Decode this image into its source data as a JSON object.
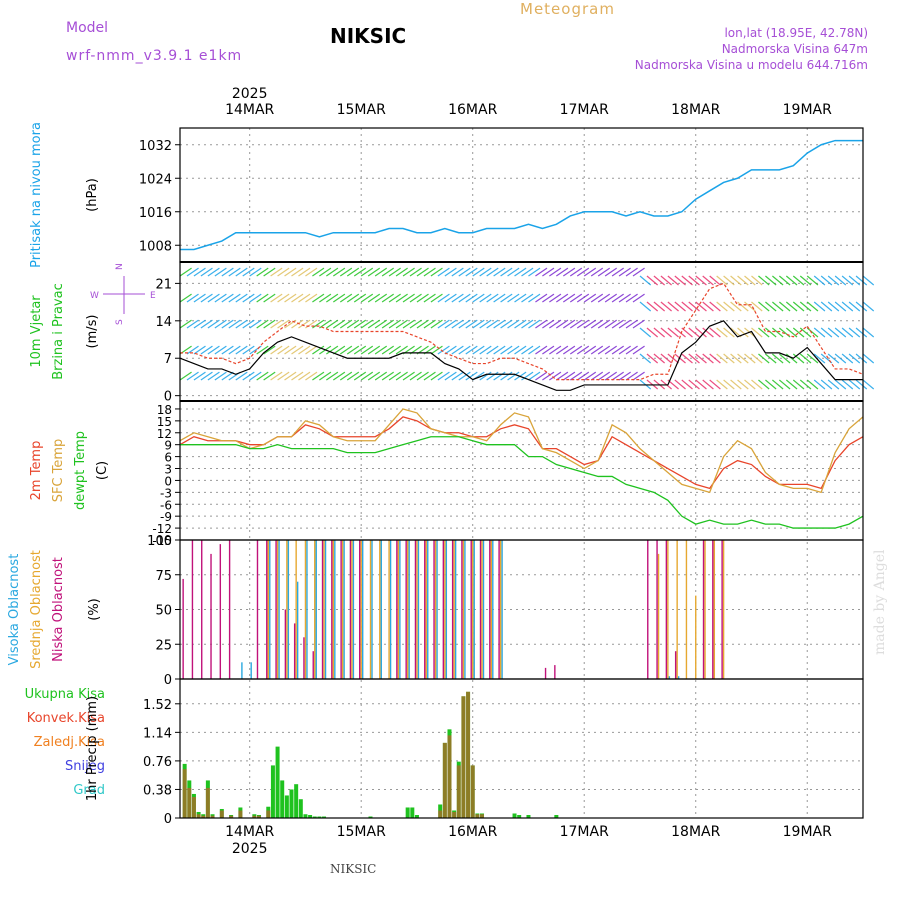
{
  "header": {
    "model_label": "Model",
    "model_name": "wrf-nmm_v3.9.1 e1km",
    "station": "NIKSIC",
    "product": "Meteogram",
    "lonlat": "lon,lat (18.95E, 42.78N)",
    "altitude": "Nadmorska Visina 647m",
    "model_altitude": "Nadmorska Visina u modelu 644.716m"
  },
  "footer": {
    "station": "NIKSIC",
    "credit": "made by Angel"
  },
  "colors": {
    "pressure": "#1aa3e8",
    "wind_speed": "#000000",
    "wind_gust": "#e8452b",
    "temp_2m": "#e8452b",
    "temp_sfc": "#d9a43a",
    "dewpoint": "#1fc21f",
    "cloud_high": "#2aa8e0",
    "cloud_mid": "#e6a830",
    "cloud_low": "#c0127a",
    "precip_total": "#1fc21f",
    "precip_conv": "#e8452b",
    "precip_frz": "#f08020",
    "precip_snow": "#4040e0",
    "precip_hail": "#30c8c8",
    "grid": "#999999"
  },
  "time_axis": {
    "year": "2025",
    "days": [
      "14MAR",
      "15MAR",
      "16MAR",
      "17MAR",
      "18MAR",
      "19MAR"
    ],
    "start_hour": -15,
    "end_hour": 132
  },
  "chart_data": [
    {
      "type": "line",
      "panel": "pressure",
      "ylabel_lines": [
        "Pritisak na nivou mora"
      ],
      "unit": "(hPa)",
      "ylim": [
        1004,
        1036
      ],
      "yticks": [
        1008,
        1016,
        1024,
        1032
      ],
      "grid": true,
      "x_hours": [
        -15,
        -12,
        -9,
        -6,
        -3,
        0,
        3,
        6,
        9,
        12,
        15,
        18,
        21,
        24,
        27,
        30,
        33,
        36,
        39,
        42,
        45,
        48,
        51,
        54,
        57,
        60,
        63,
        66,
        69,
        72,
        75,
        78,
        81,
        84,
        87,
        90,
        93,
        96,
        99,
        102,
        105,
        108,
        111,
        114,
        117,
        120,
        123,
        126,
        129,
        132
      ],
      "series": [
        {
          "values": [
            1007,
            1007,
            1008,
            1009,
            1011,
            1011,
            1011,
            1011,
            1011,
            1011,
            1010,
            1011,
            1011,
            1011,
            1011,
            1012,
            1012,
            1011,
            1011,
            1012,
            1011,
            1011,
            1012,
            1012,
            1012,
            1013,
            1012,
            1013,
            1015,
            1016,
            1016,
            1016,
            1015,
            1016,
            1015,
            1015,
            1016,
            1019,
            1021,
            1023,
            1024,
            1026,
            1026,
            1026,
            1027,
            1030,
            1032,
            1033,
            1033,
            1033
          ]
        }
      ]
    },
    {
      "type": "line",
      "panel": "wind",
      "ylabel_lines": [
        "10m Vjetar",
        "Brzina i Pravac"
      ],
      "unit": "(m/s)",
      "ylim": [
        -1,
        25
      ],
      "yticks": [
        0,
        7,
        14,
        21
      ],
      "grid": true,
      "compass": {
        "n": "N",
        "s": "S",
        "e": "E",
        "w": "W"
      },
      "x_hours": [
        -15,
        -12,
        -9,
        -6,
        -3,
        0,
        3,
        6,
        9,
        12,
        15,
        18,
        21,
        24,
        27,
        30,
        33,
        36,
        39,
        42,
        45,
        48,
        51,
        54,
        57,
        60,
        63,
        66,
        69,
        72,
        75,
        78,
        81,
        84,
        87,
        90,
        93,
        96,
        99,
        102,
        105,
        108,
        111,
        114,
        117,
        120,
        123,
        126,
        129,
        132
      ],
      "series": [
        {
          "values": [
            7,
            6,
            5,
            5,
            4,
            5,
            8,
            10,
            11,
            10,
            9,
            8,
            7,
            7,
            7,
            7,
            8,
            8,
            8,
            6,
            5,
            3,
            4,
            4,
            4,
            3,
            2,
            1,
            1,
            2,
            2,
            2,
            2,
            2,
            2,
            2,
            8,
            10,
            13,
            14,
            11,
            12,
            8,
            8,
            7,
            9,
            6,
            3,
            3,
            3
          ]
        },
        {
          "values": [
            8,
            8,
            7,
            7,
            6,
            7,
            10,
            12,
            14,
            13,
            13,
            12,
            12,
            12,
            12,
            12,
            12,
            11,
            10,
            8,
            7,
            6,
            6,
            7,
            7,
            6,
            5,
            3,
            3,
            3,
            3,
            3,
            3,
            3,
            4,
            4,
            12,
            16,
            20,
            21,
            17,
            17,
            12,
            12,
            11,
            13,
            9,
            5,
            5,
            4
          ]
        }
      ]
    },
    {
      "type": "line",
      "panel": "temperature",
      "ylabel_lines": [
        "2m Temp",
        "SFC Temp",
        "dewpt Temp"
      ],
      "unit": "(C)",
      "ylim": [
        -15,
        20
      ],
      "yticks": [
        -15,
        -12,
        -9,
        -6,
        -3,
        0,
        3,
        6,
        9,
        12,
        15,
        18
      ],
      "grid": true,
      "x_hours": [
        -15,
        -12,
        -9,
        -6,
        -3,
        0,
        3,
        6,
        9,
        12,
        15,
        18,
        21,
        24,
        27,
        30,
        33,
        36,
        39,
        42,
        45,
        48,
        51,
        54,
        57,
        60,
        63,
        66,
        69,
        72,
        75,
        78,
        81,
        84,
        87,
        90,
        93,
        96,
        99,
        102,
        105,
        108,
        111,
        114,
        117,
        120,
        123,
        126,
        129,
        132
      ],
      "series": [
        {
          "values": [
            9,
            11,
            10,
            10,
            10,
            9,
            9,
            11,
            11,
            14,
            13,
            11,
            11,
            11,
            11,
            13,
            16,
            15,
            13,
            12,
            12,
            11,
            11,
            13,
            14,
            13,
            8,
            8,
            6,
            4,
            5,
            11,
            9,
            7,
            5,
            3,
            1,
            -1,
            -2,
            3,
            5,
            4,
            1,
            -1,
            -1,
            -1,
            -2,
            5,
            9,
            11
          ]
        },
        {
          "values": [
            10,
            12,
            11,
            10,
            10,
            8,
            9,
            11,
            11,
            15,
            14,
            11,
            10,
            10,
            10,
            14,
            18,
            17,
            13,
            12,
            11,
            11,
            10,
            14,
            17,
            16,
            8,
            7,
            5,
            3,
            5,
            14,
            12,
            8,
            5,
            2,
            -1,
            -2,
            -3,
            6,
            10,
            8,
            2,
            -1,
            -2,
            -2,
            -3,
            7,
            13,
            16
          ]
        },
        {
          "values": [
            9,
            9,
            9,
            9,
            9,
            8,
            8,
            9,
            8,
            8,
            8,
            8,
            7,
            7,
            7,
            8,
            9,
            10,
            11,
            11,
            11,
            10,
            9,
            9,
            9,
            6,
            6,
            4,
            3,
            2,
            1,
            1,
            -1,
            -2,
            -3,
            -5,
            -9,
            -11,
            -10,
            -11,
            -11,
            -10,
            -11,
            -11,
            -12,
            -12,
            -12,
            -12,
            -11,
            -9
          ]
        }
      ]
    },
    {
      "type": "bar",
      "panel": "clouds",
      "ylabel_lines": [
        "Visoka Oblacnost",
        "Srednja Oblacnost",
        "Niska Oblacnost"
      ],
      "unit": "(%)",
      "ylim": [
        0,
        100
      ],
      "yticks": [
        0,
        25,
        50,
        75,
        100
      ],
      "grid": true,
      "x_hours": [
        -14,
        -12,
        -10,
        -8,
        -6,
        -4,
        -2,
        0,
        2,
        4,
        6,
        8,
        10,
        12,
        14,
        16,
        18,
        20,
        22,
        24,
        26,
        28,
        30,
        32,
        34,
        36,
        38,
        40,
        42,
        44,
        46,
        48,
        50,
        52,
        54,
        56,
        58,
        60,
        62,
        64,
        66,
        68,
        70,
        72,
        74,
        76,
        78,
        80,
        82,
        84,
        86,
        88,
        90,
        92,
        94,
        96,
        98,
        100,
        102,
        104,
        106,
        108,
        110,
        112,
        114,
        116,
        118,
        120,
        122,
        124,
        126,
        128,
        130,
        132
      ],
      "series": [
        {
          "values": [
            0,
            0,
            0,
            0,
            0,
            0,
            12,
            12,
            0,
            100,
            100,
            100,
            70,
            100,
            100,
            100,
            100,
            100,
            100,
            100,
            100,
            100,
            100,
            100,
            100,
            100,
            100,
            100,
            100,
            100,
            100,
            100,
            100,
            100,
            100,
            0,
            0,
            0,
            0,
            0,
            0,
            0,
            0,
            0,
            0,
            0,
            0,
            0,
            0,
            0,
            0,
            0,
            2,
            2,
            0,
            0,
            0,
            0,
            0,
            0,
            0,
            0,
            0,
            0,
            0,
            0,
            0,
            0,
            0,
            0,
            0,
            0,
            0,
            0
          ]
        },
        {
          "values": [
            0,
            0,
            0,
            0,
            0,
            0,
            0,
            0,
            0,
            100,
            100,
            100,
            100,
            100,
            100,
            100,
            100,
            100,
            100,
            100,
            100,
            100,
            100,
            100,
            100,
            100,
            100,
            100,
            100,
            100,
            100,
            100,
            100,
            100,
            100,
            0,
            0,
            0,
            0,
            0,
            0,
            0,
            0,
            0,
            0,
            0,
            0,
            0,
            0,
            0,
            0,
            90,
            100,
            100,
            100,
            60,
            100,
            100,
            100,
            0,
            0,
            0,
            0,
            0,
            0,
            0,
            0,
            0,
            0,
            0,
            0,
            0,
            0,
            0
          ]
        },
        {
          "values": [
            72,
            100,
            100,
            90,
            97,
            100,
            0,
            0,
            100,
            100,
            100,
            50,
            40,
            30,
            20,
            100,
            100,
            100,
            100,
            100,
            0,
            0,
            0,
            100,
            100,
            100,
            100,
            100,
            100,
            100,
            100,
            100,
            100,
            100,
            100,
            0,
            0,
            0,
            0,
            8,
            10,
            0,
            0,
            0,
            0,
            0,
            0,
            0,
            0,
            0,
            100,
            100,
            100,
            20,
            0,
            0,
            100,
            100,
            100,
            0,
            0,
            0,
            0,
            0,
            0,
            0,
            0,
            0,
            0,
            0,
            0,
            0,
            0,
            0
          ]
        }
      ]
    },
    {
      "type": "bar",
      "panel": "precip",
      "ylabel_lines": [
        "1hr Precip (mm)"
      ],
      "legend": [
        "Ukupna Kisa",
        "Konvek.Kisa",
        "Zaledj.Kisa",
        "Snijeg",
        "Grad"
      ],
      "ylim": [
        0,
        1.85
      ],
      "yticks": [
        0,
        0.38,
        0.76,
        1.14,
        1.52
      ],
      "grid": true,
      "x_hours": [
        -14,
        -13,
        -12,
        -11,
        -10,
        -9,
        -8,
        -6,
        -4,
        -2,
        1,
        2,
        4,
        5,
        6,
        7,
        8,
        9,
        10,
        11,
        12,
        13,
        14,
        15,
        16,
        26,
        34,
        35,
        36,
        41,
        42,
        43,
        44,
        45,
        46,
        47,
        48,
        49,
        50,
        57,
        58,
        60,
        66
      ],
      "series": [
        {
          "values": [
            0.72,
            0.5,
            0.32,
            0.08,
            0.05,
            0.5,
            0.05,
            0.12,
            0.04,
            0.14,
            0.05,
            0.04,
            0.15,
            0.7,
            0.95,
            0.5,
            0.3,
            0.38,
            0.45,
            0.25,
            0.05,
            0.04,
            0.02,
            0.02,
            0.02,
            0.02,
            0.14,
            0.14,
            0.04,
            0.18,
            1.0,
            1.18,
            0.1,
            0.75,
            1.62,
            1.68,
            0.7,
            0.06,
            0.06,
            0.06,
            0.04,
            0.04,
            0.04
          ]
        },
        {
          "values": [
            0.65,
            0.4,
            0.28,
            0.05,
            0.03,
            0.4,
            0.03,
            0.1,
            0.03,
            0.1,
            0.03,
            0.03,
            0.1,
            0.0,
            0.0,
            0.0,
            0.0,
            0.0,
            0.0,
            0.0,
            0.0,
            0.0,
            0.0,
            0.0,
            0.0,
            0.0,
            0.0,
            0.0,
            0.0,
            0.1,
            1.0,
            1.1,
            0.08,
            0.7,
            1.62,
            1.68,
            0.7,
            0.05,
            0.05,
            0.0,
            0.0,
            0.0,
            0.0
          ]
        }
      ]
    }
  ]
}
